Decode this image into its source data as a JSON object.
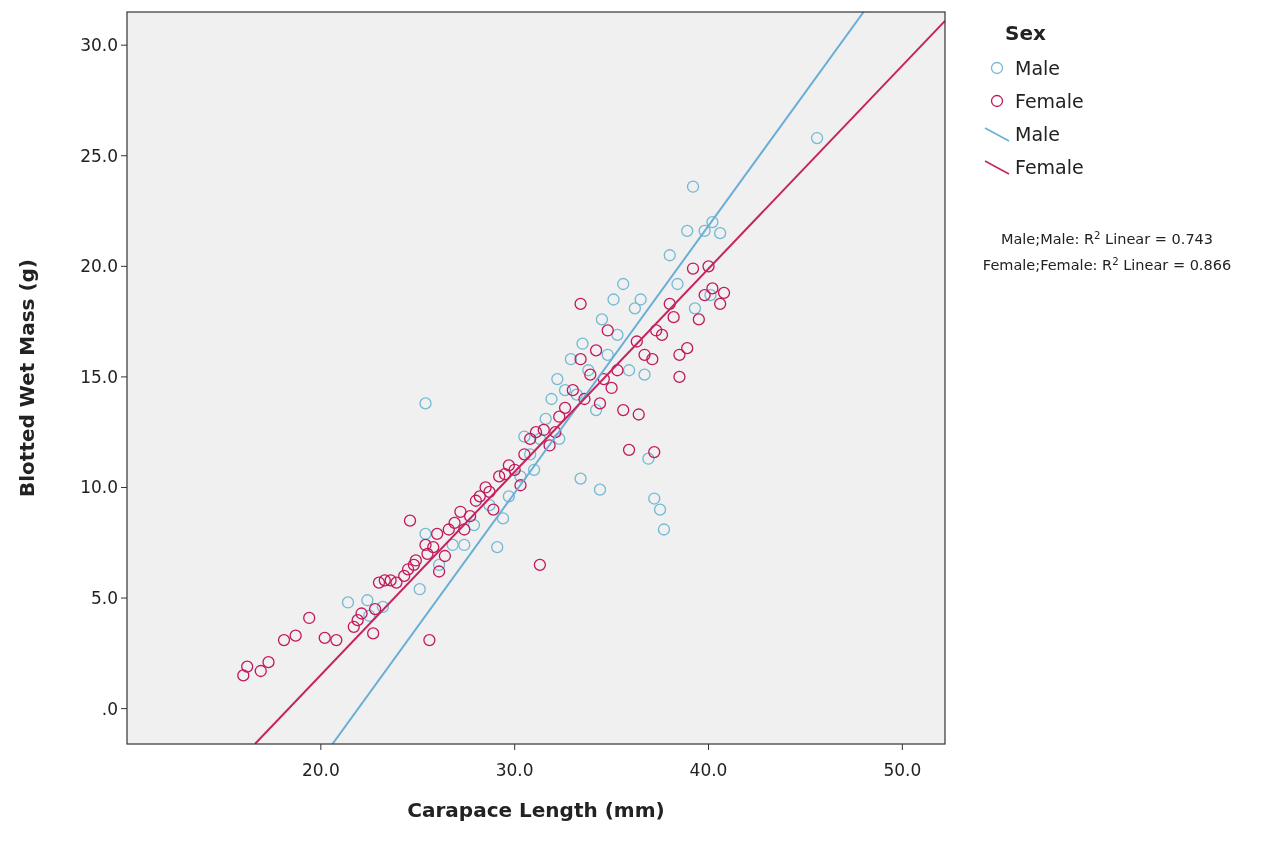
{
  "chart_data": {
    "type": "scatter",
    "xlabel": "Carapace Length (mm)",
    "ylabel": "Blotted Wet Mass (g)",
    "legend_title": "Sex",
    "legend": "right",
    "grid": false,
    "xlim": [
      10.0,
      52.2
    ],
    "ylim": [
      -1.6,
      31.5
    ],
    "xticks": [
      {
        "value": 20,
        "label": "20.0"
      },
      {
        "value": 30,
        "label": "30.0"
      },
      {
        "value": 40,
        "label": "40.0"
      },
      {
        "value": 50,
        "label": "50.0"
      }
    ],
    "yticks": [
      {
        "value": 0,
        "label": ".0"
      },
      {
        "value": 5,
        "label": "5.0"
      },
      {
        "value": 10,
        "label": "10.0"
      },
      {
        "value": 15,
        "label": "15.0"
      },
      {
        "value": 20,
        "label": "20.0"
      },
      {
        "value": 25,
        "label": "25.0"
      },
      {
        "value": 30,
        "label": "30.0"
      }
    ],
    "series": [
      {
        "name": "Male",
        "color": "#72b9d3",
        "x": [
          21.4,
          22.4,
          22.5,
          23.2,
          25.1,
          25.4,
          25.4,
          26.1,
          26.8,
          27.4,
          27.9,
          28.7,
          29.1,
          29.4,
          29.7,
          30.3,
          30.5,
          30.8,
          31.0,
          31.3,
          31.6,
          31.9,
          32.2,
          32.3,
          32.6,
          32.9,
          33.2,
          33.4,
          33.5,
          33.8,
          34.2,
          34.4,
          34.5,
          34.8,
          35.1,
          35.3,
          35.6,
          35.9,
          36.2,
          36.5,
          36.7,
          36.9,
          37.2,
          37.5,
          37.7,
          38.0,
          38.4,
          38.9,
          39.2,
          39.3,
          39.8,
          40.1,
          40.2,
          40.6,
          45.6
        ],
        "values": [
          4.8,
          4.9,
          4.2,
          4.6,
          5.4,
          7.9,
          13.8,
          6.5,
          7.4,
          7.4,
          8.3,
          9.2,
          7.3,
          8.6,
          9.6,
          10.5,
          12.3,
          11.5,
          10.8,
          12.2,
          13.1,
          14.0,
          14.9,
          12.2,
          14.4,
          15.8,
          14.2,
          10.4,
          16.5,
          15.3,
          13.5,
          9.9,
          17.6,
          16.0,
          18.5,
          16.9,
          19.2,
          15.3,
          18.1,
          18.5,
          15.1,
          11.3,
          9.5,
          9.0,
          8.1,
          20.5,
          19.2,
          21.6,
          23.6,
          18.1,
          21.6,
          18.7,
          22.0,
          21.5,
          25.8
        ]
      },
      {
        "name": "Female",
        "color": "#c2185b",
        "x": [
          16.0,
          16.2,
          16.9,
          17.3,
          18.1,
          18.7,
          19.4,
          20.2,
          20.8,
          21.7,
          21.9,
          22.1,
          22.7,
          22.8,
          23.0,
          23.3,
          23.6,
          23.9,
          24.3,
          24.5,
          24.6,
          24.8,
          24.9,
          25.4,
          25.5,
          25.6,
          25.8,
          26.0,
          26.1,
          26.4,
          26.6,
          26.9,
          27.2,
          27.4,
          27.7,
          28.0,
          28.2,
          28.5,
          28.7,
          28.9,
          29.2,
          29.5,
          29.7,
          30.0,
          30.3,
          30.5,
          30.8,
          31.1,
          31.3,
          31.5,
          31.8,
          32.1,
          32.3,
          32.6,
          33.0,
          33.4,
          33.4,
          33.6,
          33.9,
          34.2,
          34.4,
          34.6,
          34.8,
          35.0,
          35.3,
          35.6,
          35.9,
          36.3,
          36.4,
          36.7,
          37.1,
          37.2,
          37.3,
          37.6,
          38.0,
          38.2,
          38.5,
          38.5,
          38.9,
          39.2,
          39.5,
          39.8,
          40.0,
          40.2,
          40.6,
          40.8
        ],
        "values": [
          1.5,
          1.9,
          1.7,
          2.1,
          3.1,
          3.3,
          4.1,
          3.2,
          3.1,
          3.7,
          4.0,
          4.3,
          3.4,
          4.5,
          5.7,
          5.8,
          5.8,
          5.7,
          6.0,
          6.3,
          8.5,
          6.5,
          6.7,
          7.4,
          7.0,
          3.1,
          7.3,
          7.9,
          6.2,
          6.9,
          8.1,
          8.4,
          8.9,
          8.1,
          8.7,
          9.4,
          9.6,
          10.0,
          9.8,
          9.0,
          10.5,
          10.6,
          11.0,
          10.8,
          10.1,
          11.5,
          12.2,
          12.5,
          6.5,
          12.6,
          11.9,
          12.5,
          13.2,
          13.6,
          14.4,
          15.8,
          18.3,
          14.0,
          15.1,
          16.2,
          13.8,
          14.9,
          17.1,
          14.5,
          15.3,
          13.5,
          11.7,
          16.6,
          13.3,
          16.0,
          15.8,
          11.6,
          17.1,
          16.9,
          18.3,
          17.7,
          16.0,
          15.0,
          16.3,
          19.9,
          17.6,
          18.7,
          20.0,
          19.0,
          18.3,
          18.8
        ]
      },
      {
        "name": "Male",
        "type": "line",
        "color": "#6aaed6",
        "x": [
          20.6,
          48.0
        ],
        "values": [
          -1.6,
          31.5
        ]
      },
      {
        "name": "Female",
        "type": "line",
        "color": "#c5245f",
        "x": [
          16.6,
          52.2
        ],
        "values": [
          -1.6,
          31.1
        ]
      }
    ],
    "annotations": [
      "Male;Male: R$^{2}$ Linear = 0.743",
      "Female;Female: R$^{2}$ Linear = 0.866"
    ]
  }
}
